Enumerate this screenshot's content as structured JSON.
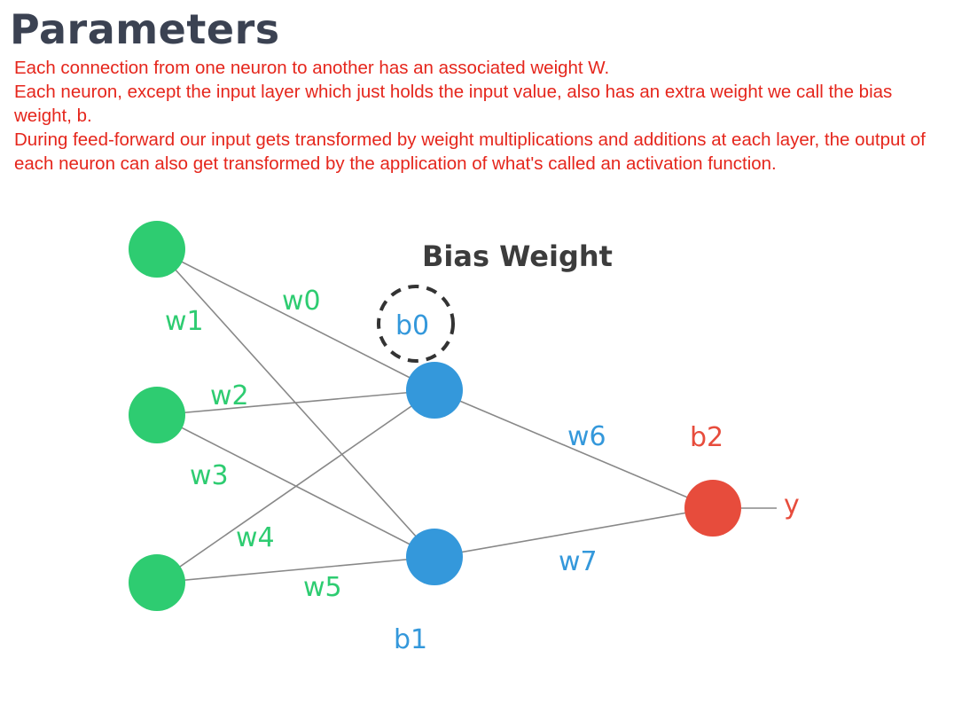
{
  "header": {
    "title": "Parameters"
  },
  "body_text": {
    "line1": "Each connection from one neuron to another has an associated weight W.",
    "line2": "Each neuron, except the input layer which just holds the input value, also has an extra weight we call the bias weight, b.",
    "line3": "During feed-forward our input gets transformed by weight multiplications and additions at each layer, the output of each neuron can also get transformed by the application of what's called an activation function."
  },
  "diagram": {
    "heading": "Bias Weight",
    "weights": [
      "w0",
      "w1",
      "w2",
      "w3",
      "w4",
      "w5",
      "w6",
      "w7"
    ],
    "biases": [
      "b0",
      "b1",
      "b2"
    ],
    "output": "y",
    "colors": {
      "input_node": "#2ecc71",
      "hidden_node": "#3498db",
      "output_node": "#e74c3c",
      "edge": "#888888",
      "bias_ring": "#333333"
    }
  }
}
